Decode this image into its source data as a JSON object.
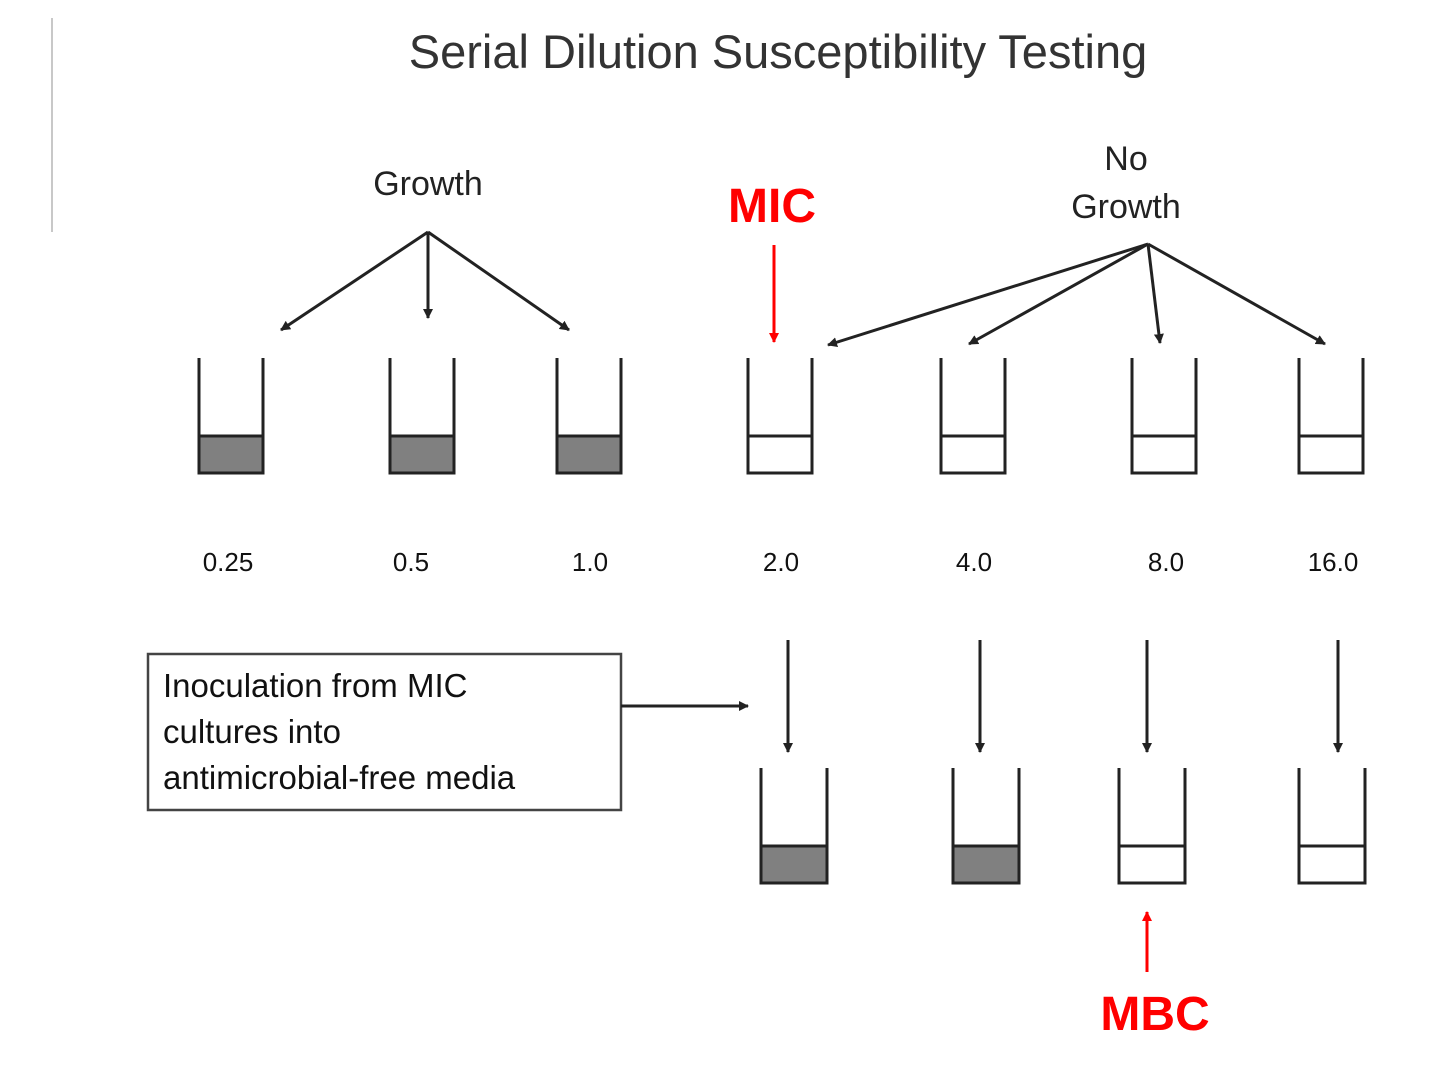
{
  "title": "Serial Dilution Susceptibility Testing",
  "labels": {
    "growth": "Growth",
    "no_growth_line1": "No",
    "no_growth_line2": "Growth",
    "mic": "MIC",
    "mbc": "MBC"
  },
  "concentrations": [
    "0.25",
    "0.5",
    "1.0",
    "2.0",
    "4.0",
    "8.0",
    "16.0"
  ],
  "top_tubes": [
    {
      "concentration": "0.25",
      "growth": true
    },
    {
      "concentration": "0.5",
      "growth": true
    },
    {
      "concentration": "1.0",
      "growth": true
    },
    {
      "concentration": "2.0",
      "growth": false
    },
    {
      "concentration": "4.0",
      "growth": false
    },
    {
      "concentration": "8.0",
      "growth": false
    },
    {
      "concentration": "16.0",
      "growth": false
    }
  ],
  "bottom_tubes": [
    {
      "concentration": "2.0",
      "growth": true
    },
    {
      "concentration": "4.0",
      "growth": true
    },
    {
      "concentration": "8.0",
      "growth": false
    },
    {
      "concentration": "16.0",
      "growth": false
    }
  ],
  "inoculation_box": {
    "line1": "Inoculation from MIC",
    "line2": "cultures into",
    "line3": "antimicrobial-free media"
  },
  "colors": {
    "growth_fill": "#808080",
    "accent_red": "#ff0000",
    "line": "#222222"
  }
}
